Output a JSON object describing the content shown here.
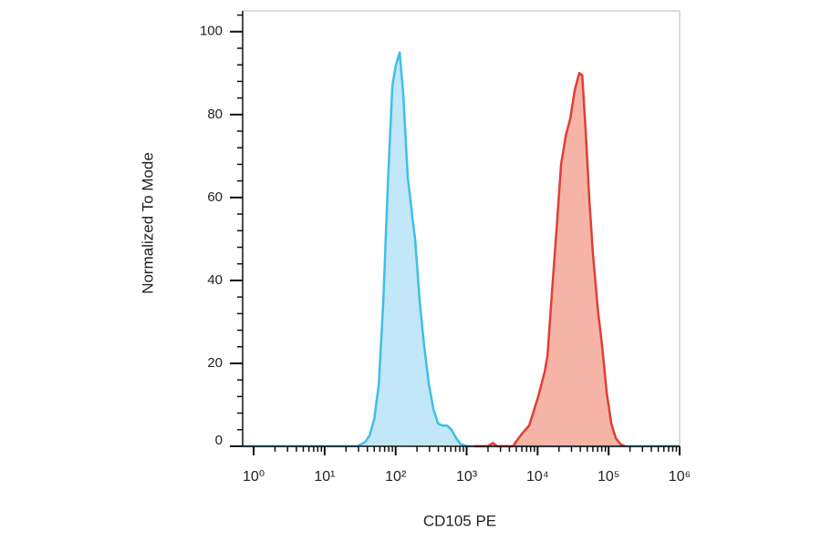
{
  "chart_data": {
    "type": "histogram-overlay",
    "xlabel": "CD105 PE",
    "ylabel": "Normalized To Mode",
    "xscale": "log",
    "xlim": [
      0.7,
      1000000
    ],
    "ylim": [
      0,
      105
    ],
    "xticks": [
      {
        "value": 1,
        "label": "10⁰"
      },
      {
        "value": 10,
        "label": "10¹"
      },
      {
        "value": 100,
        "label": "10²"
      },
      {
        "value": 1000,
        "label": "10³"
      },
      {
        "value": 10000,
        "label": "10⁴"
      },
      {
        "value": 100000,
        "label": "10⁵"
      },
      {
        "value": 1000000,
        "label": "10⁶"
      }
    ],
    "xminorticks": [
      2,
      3,
      4,
      5,
      6,
      7,
      8,
      9,
      20,
      30,
      40,
      50,
      60,
      70,
      80,
      90,
      200,
      300,
      400,
      500,
      600,
      700,
      800,
      900,
      2000,
      3000,
      4000,
      5000,
      6000,
      7000,
      8000,
      9000,
      20000,
      30000,
      40000,
      50000,
      60000,
      70000,
      80000,
      90000,
      200000,
      300000,
      400000,
      500000,
      600000,
      700000,
      800000,
      900000
    ],
    "yticks": [
      0,
      20,
      40,
      60,
      80,
      100
    ],
    "yminorticks": [
      4,
      8,
      12,
      16,
      24,
      28,
      32,
      36,
      44,
      48,
      52,
      56,
      64,
      68,
      72,
      76,
      84,
      88,
      92,
      96,
      104
    ],
    "series": [
      {
        "color": "#3ebfe6",
        "fill": "#b6e3f7",
        "x": [
          0.7,
          29,
          37,
          43,
          50,
          58,
          67,
          78,
          90,
          101,
          114,
          128,
          148,
          173,
          188,
          218,
          253,
          294,
          340,
          396,
          457,
          530,
          612,
          710,
          825,
          1020,
          1000000
        ],
        "values": [
          0,
          0,
          1,
          2.6,
          6.6,
          15,
          35,
          64,
          87,
          92,
          95,
          85,
          65,
          55,
          50,
          35,
          24,
          15,
          9,
          5.5,
          5,
          5,
          4,
          2,
          0.5,
          0,
          0
        ]
      },
      {
        "color": "#e03e36",
        "fill": "#f4a796",
        "x": [
          1290,
          2000,
          2340,
          2700,
          4500,
          4900,
          6000,
          7600,
          10200,
          12600,
          13800,
          15900,
          18600,
          21400,
          25000,
          28800,
          33400,
          38600,
          42500,
          47900,
          53700,
          60400,
          70500,
          81200,
          93900,
          109000,
          126000,
          147000,
          170000
        ],
        "values": [
          0,
          0,
          0.8,
          0,
          0,
          1,
          3,
          5,
          12,
          18,
          22,
          37,
          53,
          68,
          75,
          79,
          86,
          90,
          89.5,
          75,
          59,
          46,
          33,
          24,
          13,
          5.5,
          2,
          0.5,
          0
        ]
      }
    ]
  }
}
